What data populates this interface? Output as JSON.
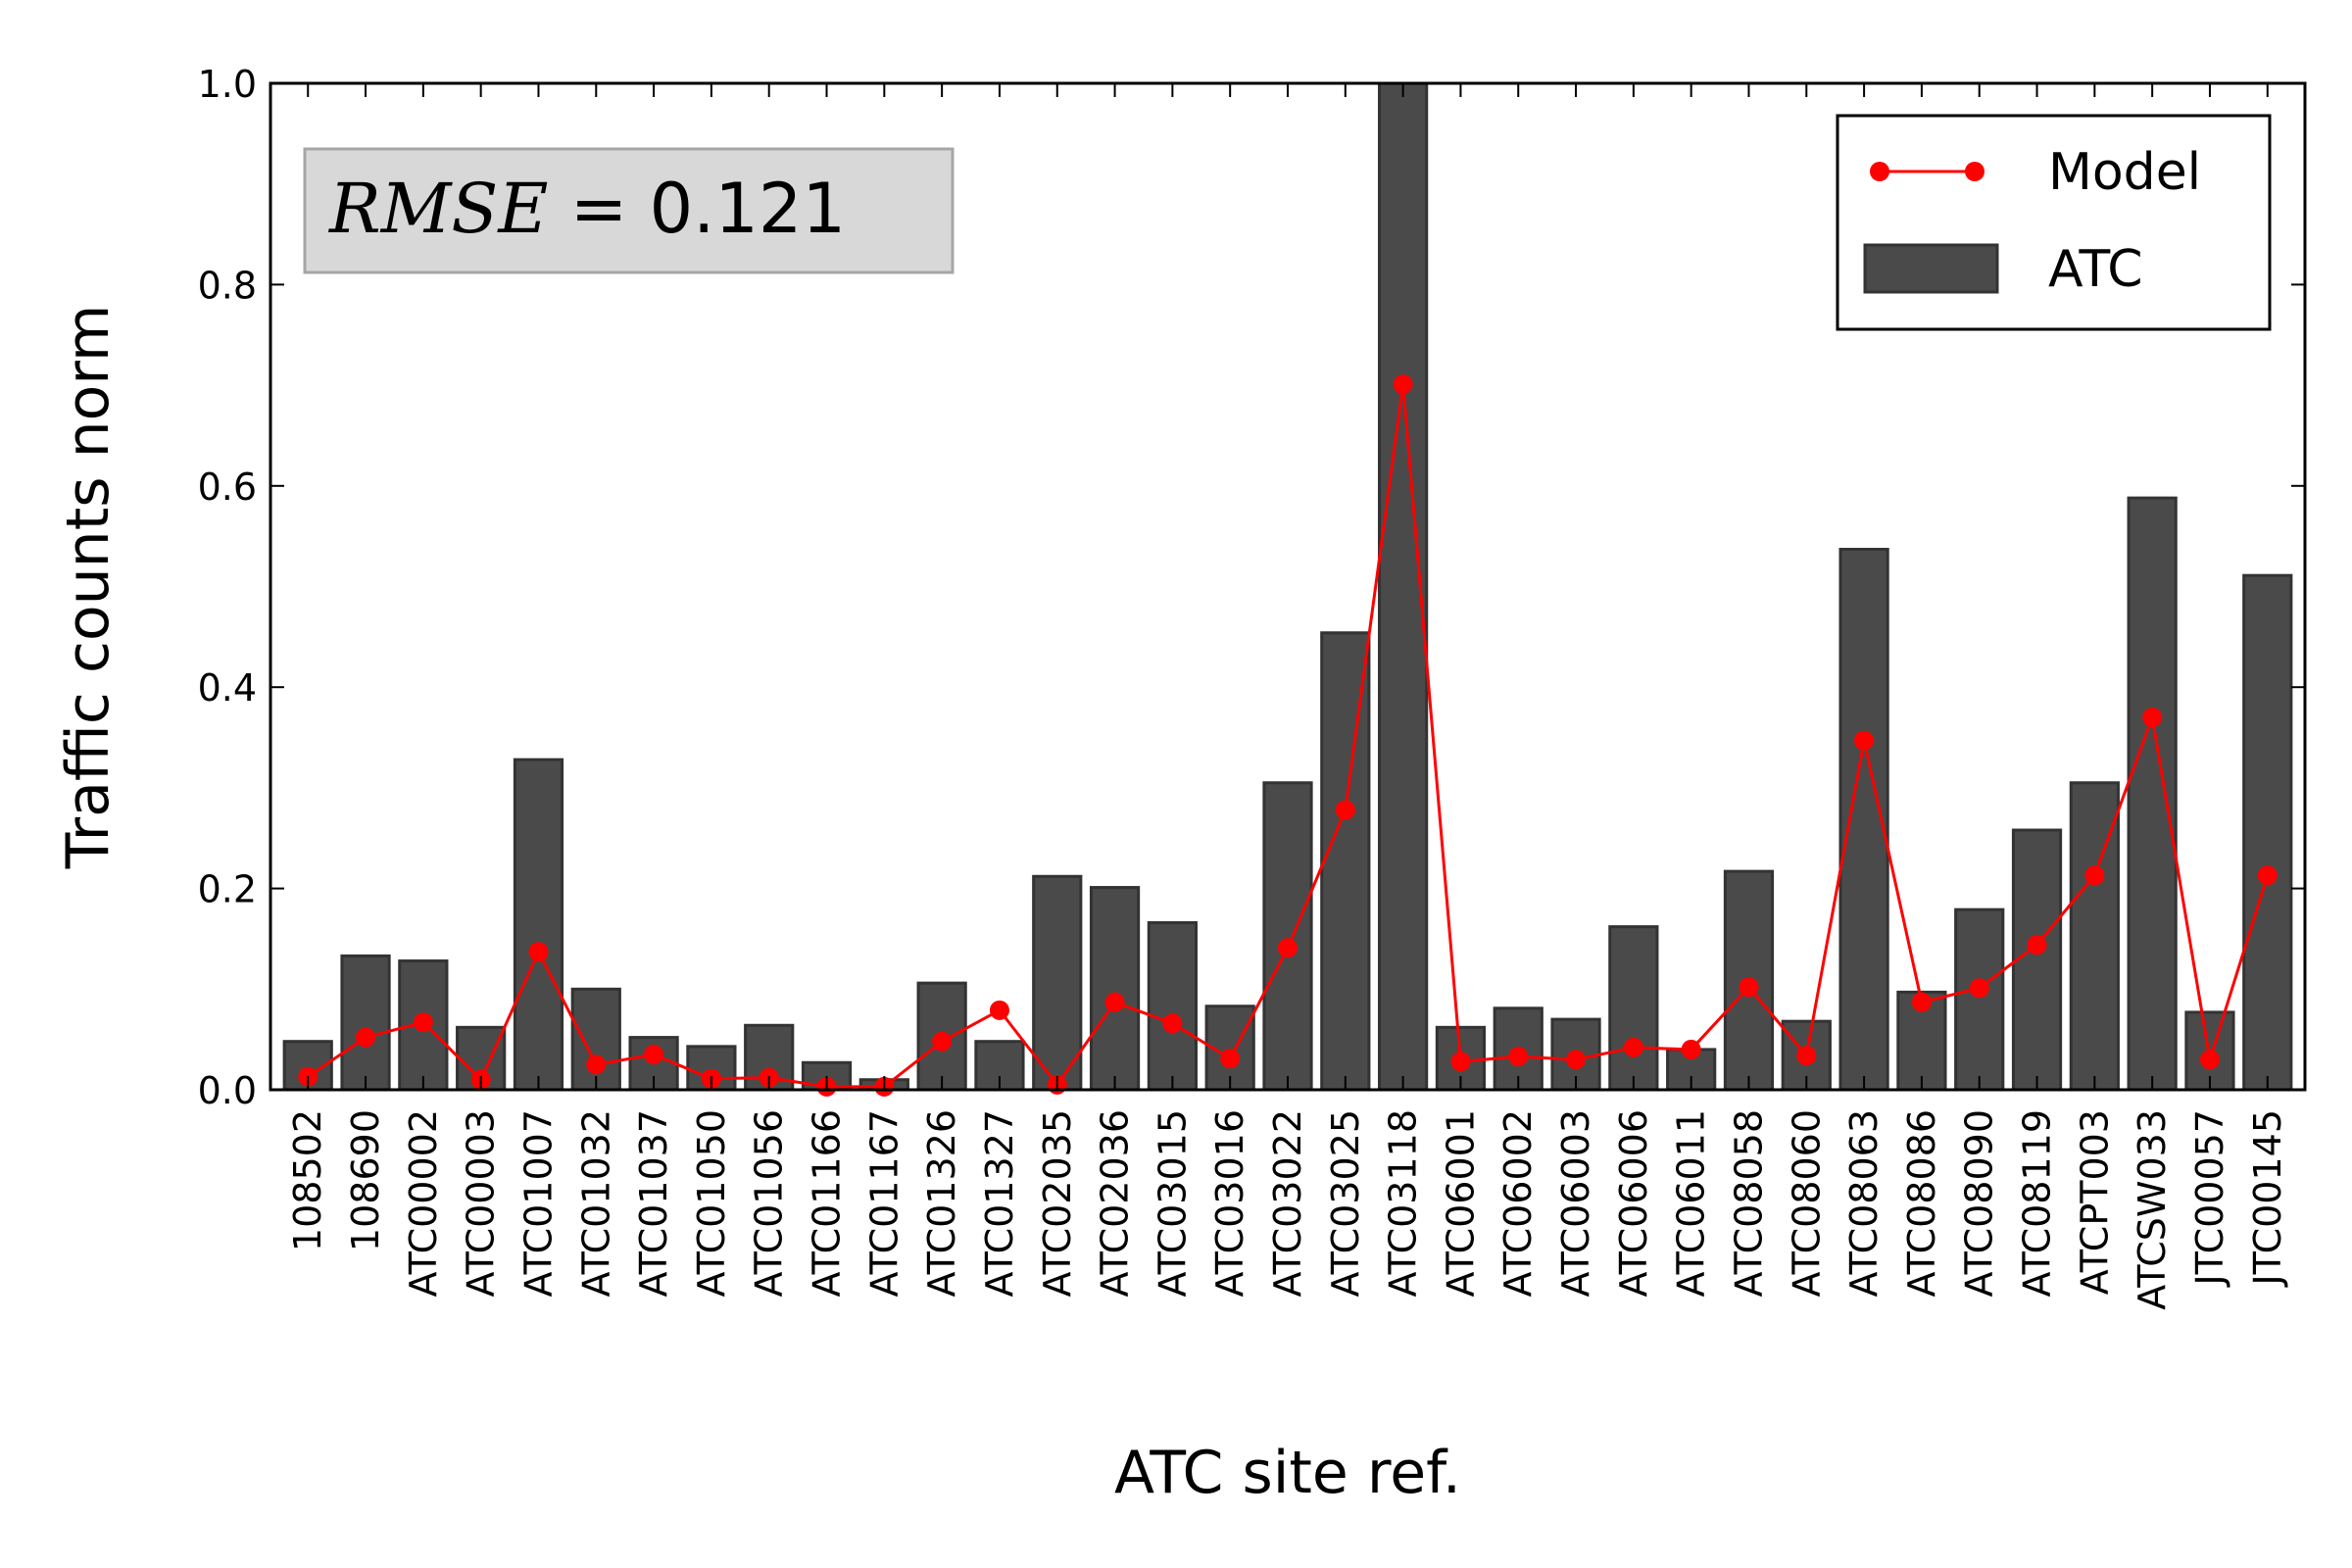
{
  "chart_data": {
    "type": "bar",
    "xlabel": "ATC site ref.",
    "ylabel": "Traffic counts norm",
    "ylim": [
      0.0,
      1.0
    ],
    "yticks": [
      "0.0",
      "0.2",
      "0.4",
      "0.6",
      "0.8",
      "1.0"
    ],
    "categories": [
      "108502",
      "108690",
      "ATC00002",
      "ATC00003",
      "ATC01007",
      "ATC01032",
      "ATC01037",
      "ATC01050",
      "ATC01056",
      "ATC01166",
      "ATC01167",
      "ATC01326",
      "ATC01327",
      "ATC02035",
      "ATC02036",
      "ATC03015",
      "ATC03016",
      "ATC03022",
      "ATC03025",
      "ATC03118",
      "ATC06001",
      "ATC06002",
      "ATC06003",
      "ATC06006",
      "ATC06011",
      "ATC08058",
      "ATC08060",
      "ATC08063",
      "ATC08086",
      "ATC08090",
      "ATC08119",
      "ATCPT003",
      "ATCSW033",
      "JTC00057",
      "JTC00145"
    ],
    "series": [
      {
        "name": "ATC",
        "kind": "bar",
        "color": "#4a4a4a",
        "values": [
          0.048,
          0.133,
          0.128,
          0.062,
          0.328,
          0.1,
          0.052,
          0.043,
          0.064,
          0.027,
          0.01,
          0.106,
          0.048,
          0.212,
          0.201,
          0.166,
          0.083,
          0.305,
          0.454,
          1.0,
          0.062,
          0.081,
          0.07,
          0.162,
          0.04,
          0.217,
          0.068,
          0.537,
          0.097,
          0.179,
          0.258,
          0.305,
          0.588,
          0.077,
          0.511
        ]
      },
      {
        "name": "Model",
        "kind": "line",
        "color": "#ff0000",
        "values": [
          0.013,
          0.052,
          0.067,
          0.01,
          0.137,
          0.025,
          0.035,
          0.011,
          0.012,
          0.003,
          0.003,
          0.048,
          0.079,
          0.005,
          0.087,
          0.066,
          0.031,
          0.141,
          0.278,
          0.701,
          0.028,
          0.033,
          0.03,
          0.042,
          0.04,
          0.102,
          0.034,
          0.347,
          0.087,
          0.101,
          0.144,
          0.213,
          0.37,
          0.03,
          0.213
        ]
      }
    ],
    "legend": {
      "placement": "top-right",
      "entries": [
        "Model",
        "ATC"
      ]
    },
    "grid": false,
    "annotation": {
      "label": "RMSE",
      "value": "0.121"
    }
  }
}
